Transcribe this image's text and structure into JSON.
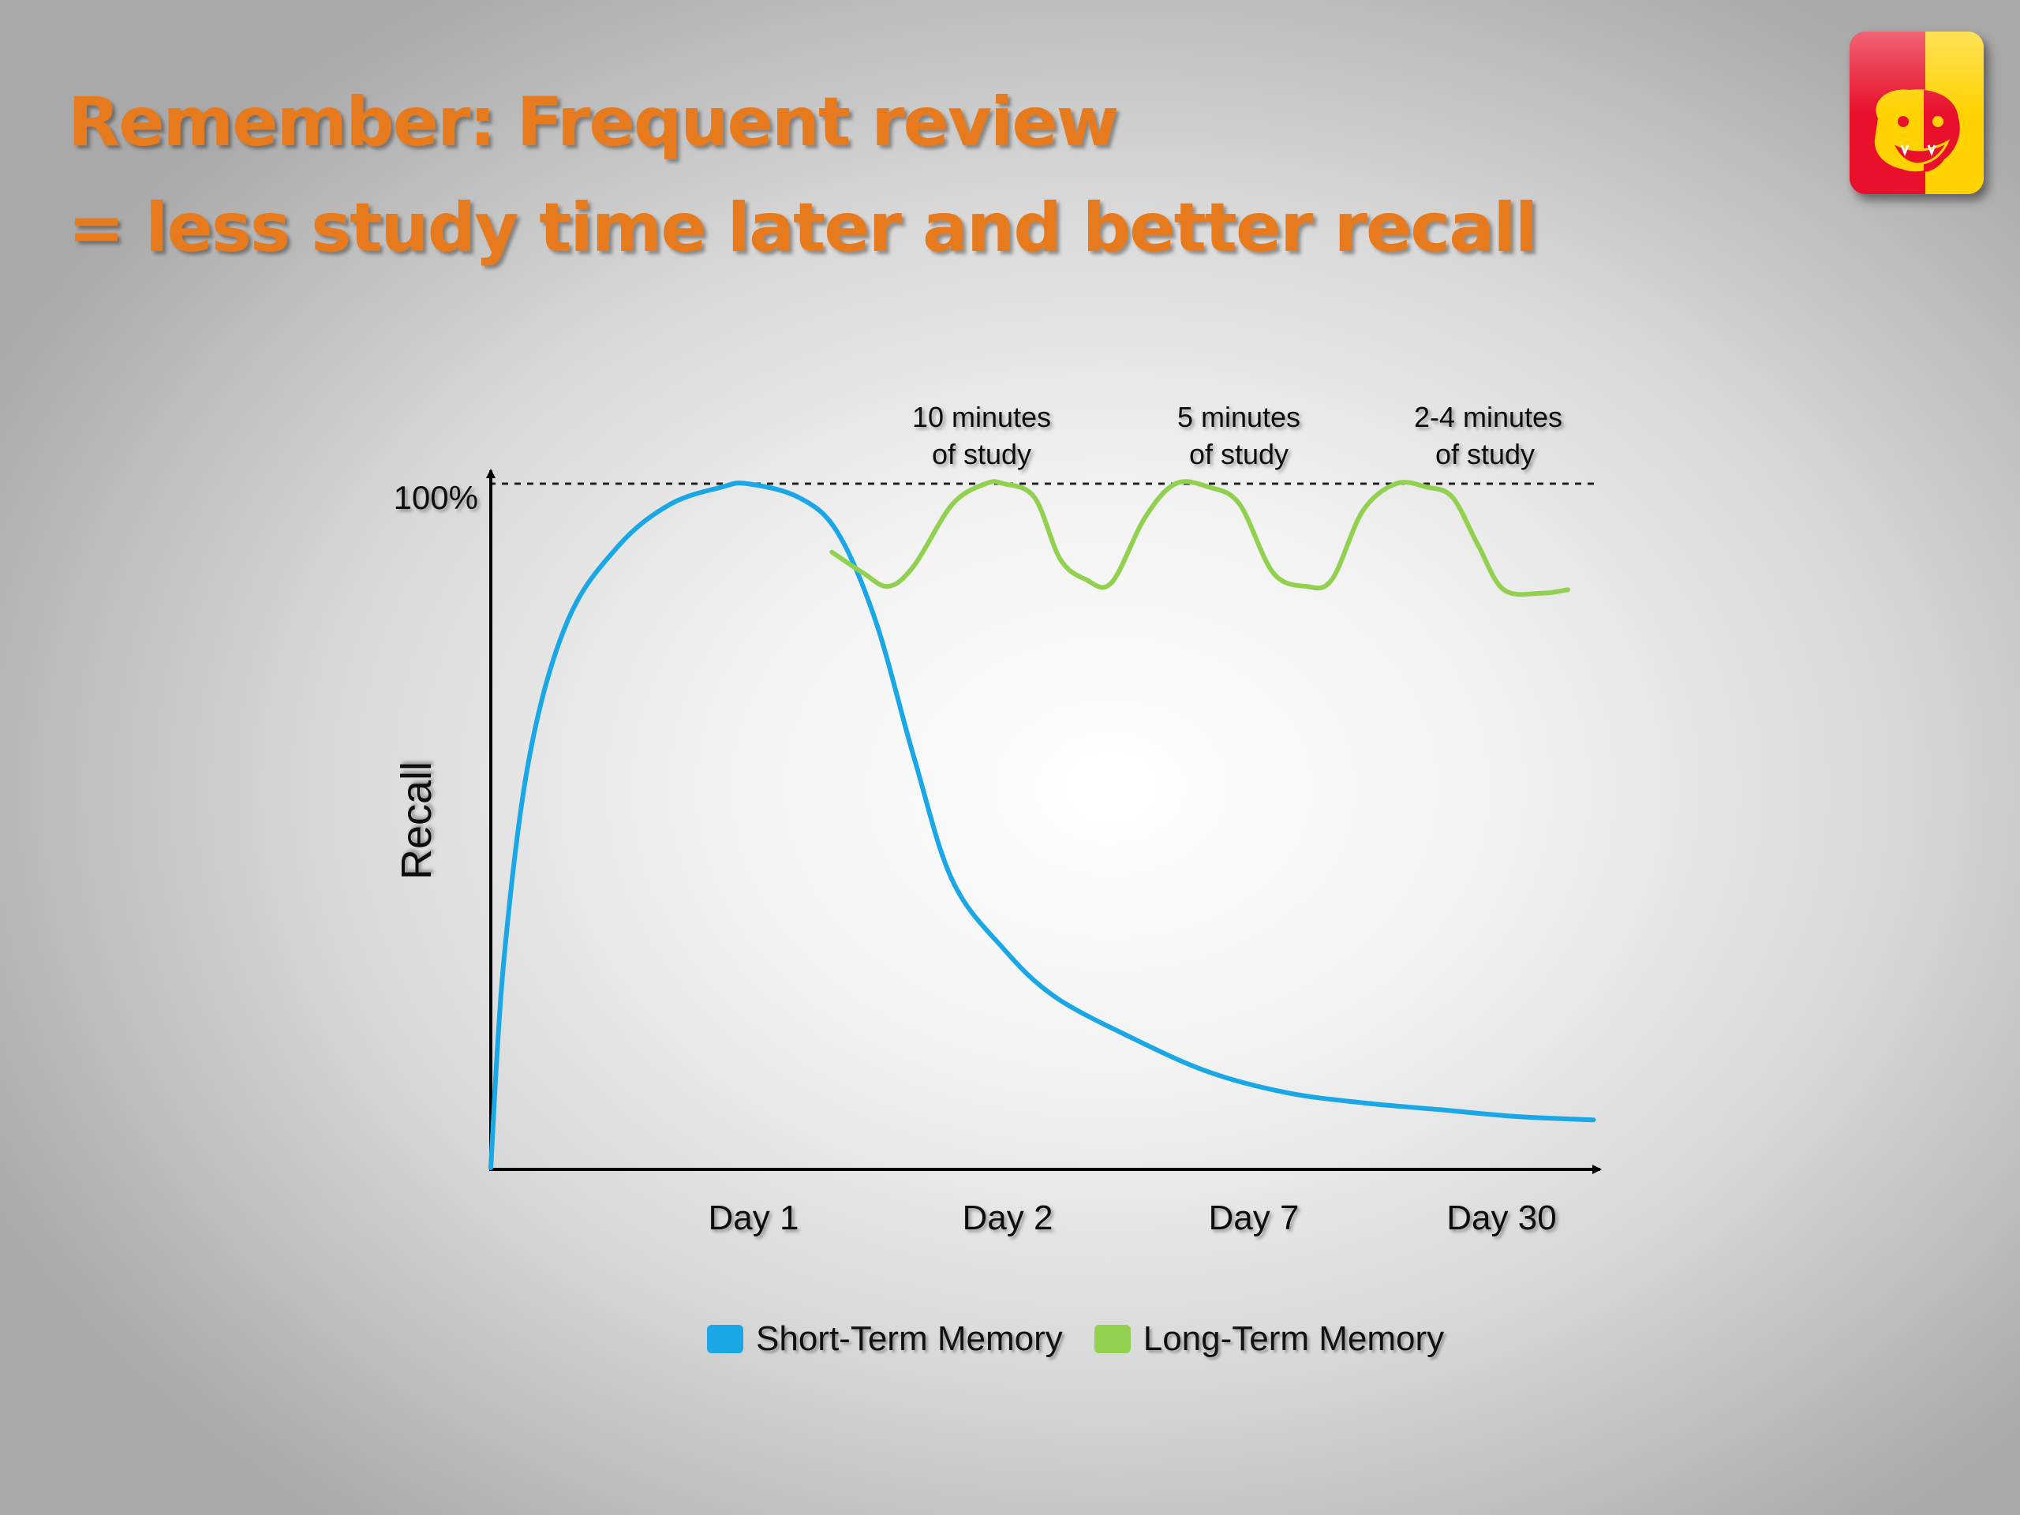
{
  "title": {
    "line1": "Remember: Frequent review",
    "line2": "= less study time later and better recall"
  },
  "logo": {
    "icon": "gorilla-mascot-icon",
    "colors": [
      "#e8102a",
      "#ffd200"
    ]
  },
  "chart_data": {
    "type": "line",
    "title": "",
    "xlabel": "",
    "ylabel": "Recall",
    "y_max_label": "100%",
    "ylim": [
      0,
      100
    ],
    "grid": false,
    "reference_line": {
      "y": 100,
      "style": "dashed"
    },
    "x_ticks": [
      "Day 1",
      "Day 2",
      "Day 7",
      "Day 30"
    ],
    "annotations": [
      {
        "line1": "10 minutes",
        "line2": "of study",
        "near": "Day 2"
      },
      {
        "line1": "5 minutes",
        "line2": "of study",
        "near": "Day 7"
      },
      {
        "line1": "2-4 minutes",
        "line2": "of study",
        "near": "Day 30"
      }
    ],
    "legend_position": "bottom",
    "series": [
      {
        "name": "Short-Term Memory",
        "color": "#1aa7e6",
        "x": [
          0,
          0.05,
          0.15,
          0.3,
          0.5,
          0.7,
          0.9,
          1.0,
          1.2,
          1.35,
          1.5,
          1.65,
          1.8,
          2.0,
          2.2,
          2.5,
          2.8,
          3.1,
          3.4,
          3.7,
          4.0,
          4.3
        ],
        "y": [
          0,
          30,
          60,
          80,
          91,
          97,
          99.5,
          100,
          98,
          93,
          80,
          60,
          42,
          32,
          25,
          19,
          14,
          11,
          9.5,
          8.5,
          7.5,
          7
        ]
      },
      {
        "name": "Long-Term Memory",
        "color": "#92d050",
        "x": [
          1.33,
          1.45,
          1.55,
          1.65,
          1.8,
          1.93,
          2.0,
          2.12,
          2.22,
          2.32,
          2.42,
          2.55,
          2.67,
          2.8,
          2.92,
          3.05,
          3.18,
          3.28,
          3.4,
          3.53,
          3.65,
          3.75,
          3.85,
          3.95,
          4.1,
          4.2
        ],
        "y": [
          90,
          87,
          85,
          88,
          97,
          100,
          100,
          98,
          89,
          86,
          85.5,
          95,
          100,
          99.5,
          97,
          87,
          85,
          86,
          96,
          100,
          99.5,
          98,
          91,
          84.5,
          84,
          84.5
        ]
      }
    ]
  }
}
